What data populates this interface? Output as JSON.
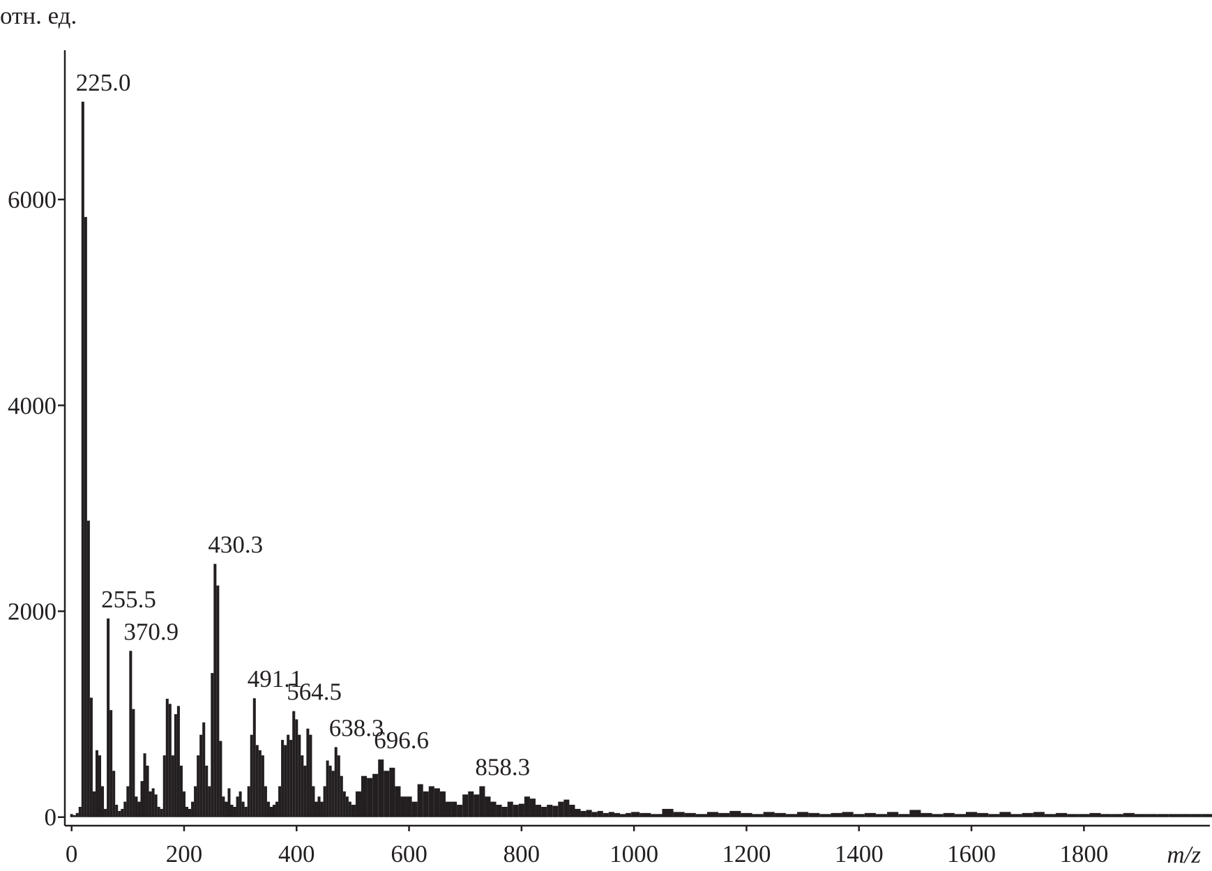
{
  "chart_data": {
    "type": "bar",
    "color": "#231f20",
    "y_label": "отн. ед.",
    "x_label": "m/z",
    "xlim": [
      -12,
      2024
    ],
    "xticks": [
      0,
      200,
      400,
      600,
      800,
      1000,
      1200,
      1400,
      1600,
      1800
    ],
    "ylim": [
      -83,
      7450
    ],
    "yticks": [
      0,
      2000,
      4000,
      6000
    ],
    "x": [
      0,
      5,
      10,
      15,
      20,
      25,
      30,
      35,
      40,
      45,
      50,
      55,
      60,
      65,
      70,
      75,
      80,
      85,
      90,
      95,
      100,
      105,
      110,
      115,
      120,
      125,
      130,
      135,
      140,
      145,
      150,
      155,
      160,
      165,
      170,
      175,
      180,
      185,
      190,
      195,
      200,
      205,
      210,
      215,
      220,
      225,
      230,
      235,
      240,
      245,
      250,
      255,
      260,
      265,
      270,
      275,
      280,
      285,
      290,
      295,
      300,
      305,
      310,
      315,
      320,
      325,
      330,
      335,
      340,
      345,
      350,
      355,
      360,
      365,
      370,
      375,
      380,
      385,
      390,
      395,
      400,
      405,
      410,
      415,
      420,
      425,
      430,
      435,
      440,
      445,
      450,
      455,
      460,
      465,
      470,
      475,
      480,
      485,
      490,
      495,
      500,
      510,
      520,
      530,
      540,
      550,
      560,
      570,
      580,
      590,
      600,
      610,
      620,
      630,
      640,
      650,
      660,
      670,
      680,
      690,
      700,
      710,
      720,
      730,
      740,
      750,
      760,
      770,
      780,
      790,
      800,
      810,
      820,
      830,
      840,
      850,
      860,
      870,
      880,
      890,
      900,
      910,
      920,
      930,
      940,
      950,
      960,
      970,
      980,
      990,
      1000,
      1020,
      1040,
      1060,
      1080,
      1100,
      1120,
      1140,
      1160,
      1180,
      1200,
      1220,
      1240,
      1260,
      1280,
      1300,
      1320,
      1340,
      1360,
      1380,
      1400,
      1420,
      1440,
      1460,
      1480,
      1500,
      1520,
      1540,
      1560,
      1580,
      1600,
      1620,
      1640,
      1660,
      1680,
      1700,
      1720,
      1740,
      1760,
      1780,
      1800,
      1820,
      1840,
      1860,
      1880,
      1900,
      1920,
      1940,
      1960,
      1980,
      2000,
      2020
    ],
    "values": [
      30,
      20,
      40,
      100,
      6950,
      5830,
      2880,
      1160,
      250,
      650,
      600,
      300,
      80,
      1930,
      1040,
      450,
      120,
      60,
      80,
      150,
      300,
      1615,
      1050,
      200,
      150,
      350,
      620,
      500,
      250,
      280,
      220,
      100,
      80,
      600,
      1150,
      1100,
      600,
      1000,
      1080,
      500,
      250,
      100,
      80,
      150,
      300,
      600,
      800,
      920,
      500,
      300,
      1400,
      2460,
      2250,
      740,
      200,
      150,
      280,
      120,
      100,
      200,
      250,
      150,
      100,
      300,
      800,
      1155,
      700,
      650,
      600,
      300,
      150,
      100,
      120,
      150,
      300,
      750,
      700,
      800,
      750,
      1030,
      950,
      800,
      600,
      500,
      860,
      800,
      300,
      150,
      200,
      150,
      300,
      550,
      500,
      450,
      680,
      600,
      400,
      250,
      200,
      150,
      120,
      250,
      400,
      380,
      420,
      560,
      450,
      480,
      300,
      200,
      200,
      150,
      320,
      250,
      300,
      280,
      250,
      150,
      150,
      120,
      220,
      250,
      220,
      300,
      200,
      150,
      120,
      100,
      150,
      120,
      130,
      200,
      180,
      120,
      100,
      120,
      110,
      150,
      170,
      120,
      80,
      60,
      70,
      50,
      60,
      40,
      50,
      40,
      30,
      40,
      50,
      40,
      30,
      80,
      50,
      40,
      30,
      50,
      40,
      60,
      40,
      30,
      50,
      40,
      30,
      50,
      40,
      30,
      40,
      50,
      30,
      40,
      30,
      50,
      30,
      70,
      40,
      30,
      40,
      30,
      50,
      40,
      30,
      50,
      30,
      40,
      50,
      30,
      40,
      30,
      30,
      40,
      30,
      30,
      40,
      30,
      30,
      30,
      30,
      30,
      30,
      30
    ],
    "annotations": [
      {
        "text": "225.0",
        "x": 20,
        "y": 6950
      },
      {
        "text": "255.5",
        "x": 65,
        "y": 1930
      },
      {
        "text": "370.9",
        "x": 105,
        "y": 1615
      },
      {
        "text": "430.3",
        "x": 255,
        "y": 2460
      },
      {
        "text": "491.1",
        "x": 325,
        "y": 1155
      },
      {
        "text": "564.5",
        "x": 395,
        "y": 1030
      },
      {
        "text": "638.3",
        "x": 470,
        "y": 680
      },
      {
        "text": "696.6",
        "x": 550,
        "y": 560
      },
      {
        "text": "858.3",
        "x": 730,
        "y": 300
      }
    ]
  }
}
